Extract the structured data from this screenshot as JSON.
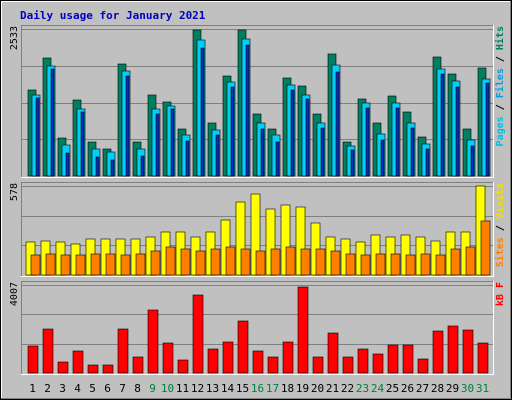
{
  "chart_data": {
    "type": "bar",
    "title": "Daily usage for January 2021",
    "categories": [
      "1",
      "2",
      "3",
      "4",
      "5",
      "6",
      "7",
      "8",
      "9",
      "10",
      "11",
      "12",
      "13",
      "14",
      "15",
      "16",
      "17",
      "18",
      "19",
      "20",
      "21",
      "22",
      "23",
      "24",
      "25",
      "26",
      "27",
      "28",
      "29",
      "30",
      "31"
    ],
    "weekend_days": [
      "9",
      "10",
      "16",
      "17",
      "23",
      "24",
      "30",
      "31"
    ],
    "panels": [
      {
        "id": "top",
        "ymax_label": "2533",
        "ylim": [
          0,
          2533
        ],
        "axis_label": [
          {
            "text": "Pages",
            "color": "#00c0e0"
          },
          {
            "text": " / ",
            "color": "#000000"
          },
          {
            "text": "Files",
            "color": "#00a0e8"
          },
          {
            "text": " / ",
            "color": "#000000"
          },
          {
            "text": "Hits",
            "color": "#008060"
          }
        ],
        "series": [
          {
            "name": "Hits",
            "color": "#008060",
            "values": [
              1490,
              2031,
              662,
              1307,
              587,
              470,
              1923,
              587,
              1400,
              1279,
              805,
              2513,
              920,
              1727,
              2513,
              1066,
              805,
              1682,
              1547,
              1070,
              2098,
              587,
              1333,
              920,
              1373,
              1102,
              678,
              2058,
              1761,
              805,
              1857
            ]
          },
          {
            "name": "Files",
            "color": "#00d0f8",
            "values": [
              1400,
              1903,
              540,
              1150,
              470,
              410,
              1803,
              470,
              1150,
              1200,
              700,
              2343,
              800,
              1627,
              2363,
              920,
              700,
              1560,
              1400,
              920,
              1920,
              510,
              1250,
              720,
              1250,
              920,
              560,
              1842,
              1630,
              620,
              1680
            ]
          },
          {
            "name": "Pages",
            "color": "#0030c0",
            "values": [
              1340,
              1840,
              400,
              1100,
              320,
              280,
              1720,
              340,
              1060,
              1150,
              600,
              2200,
              700,
              1540,
              2250,
              810,
              580,
              1480,
              1320,
              820,
              1800,
              440,
              1180,
              620,
              1180,
              820,
              470,
              1750,
              1540,
              520,
              1600
            ]
          }
        ]
      },
      {
        "id": "mid",
        "ymax_label": "578",
        "ylim": [
          0,
          578
        ],
        "axis_label": [
          {
            "text": "Sites",
            "color": "#ff8000"
          },
          {
            "text": " / ",
            "color": "#000000"
          },
          {
            "text": "Visits",
            "color": "#f0e000"
          }
        ],
        "series": [
          {
            "name": "Visits",
            "color": "#ffff00",
            "values": [
              212,
              224,
              212,
              204,
              232,
              232,
              232,
              232,
              244,
              282,
              282,
              244,
              282,
              360,
              477,
              528,
              427,
              453,
              440,
              340,
              244,
              232,
              212,
              257,
              244,
              257,
              244,
              220,
              282,
              282,
              578
            ]
          },
          {
            "name": "Sites",
            "color": "#ff8000",
            "values": [
              127,
              138,
              127,
              127,
              138,
              138,
              127,
              138,
              158,
              185,
              170,
              158,
              170,
              182,
              170,
              158,
              170,
              182,
              170,
              172,
              158,
              138,
              127,
              138,
              138,
              127,
              138,
              127,
              170,
              182,
              352
            ]
          }
        ]
      },
      {
        "id": "bot",
        "ymax_label": "4007",
        "ylim": [
          0,
          4007
        ],
        "axis_label": [
          {
            "text": "kB F",
            "color": "#ff0000"
          }
        ],
        "series": [
          {
            "name": "kB F",
            "color": "#ff0000",
            "values": [
              1233,
              2000,
              500,
              1009,
              384,
              384,
              2000,
              738,
              2891,
              1348,
              608,
              3532,
              1087,
              1395,
              2384,
              1009,
              738,
              1430,
              3910,
              738,
              1819,
              738,
              1087,
              857,
              1296,
              1296,
              652,
              1920,
              2141,
              1973,
              1348
            ]
          }
        ]
      }
    ]
  }
}
